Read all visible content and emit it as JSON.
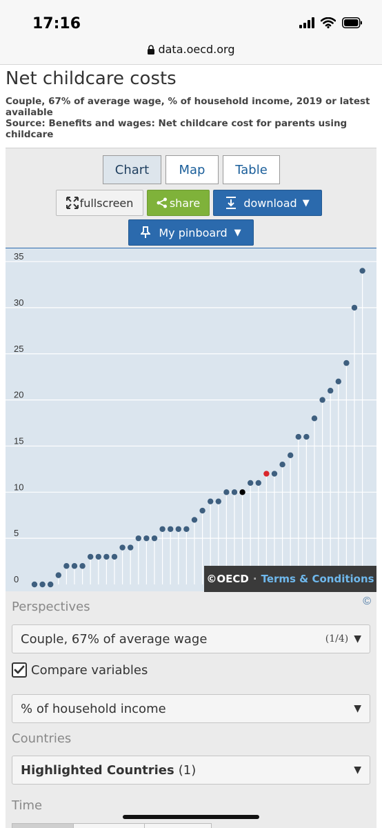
{
  "status": {
    "time": "17:16",
    "url": "data.oecd.org",
    "icons": [
      "signal-icon",
      "wifi-icon",
      "battery-icon"
    ]
  },
  "page": {
    "title": "Net childcare costs",
    "subtitle": "Couple, 67% of average wage, % of household income, 2019 or latest available",
    "source": "Source: Benefits and wages: Net childcare cost for parents using childcare"
  },
  "tabs": [
    {
      "label": "Chart",
      "active": true
    },
    {
      "label": "Map"
    },
    {
      "label": "Table"
    }
  ],
  "buttons": {
    "fullscreen": "fullscreen",
    "share": "share",
    "download": "download",
    "pinboard": "My pinboard"
  },
  "colors": {
    "accent": "#2b6aad",
    "share_green": "#7fb23a",
    "dot": "#3e5f7f",
    "highlight_red": "#d9262c",
    "highlight_black": "#000000",
    "chart_bg": "#dbe5ee"
  },
  "chart_data": {
    "type": "scatter",
    "title": "",
    "xlabel": "",
    "ylabel": "",
    "ylim": [
      0,
      35
    ],
    "yticks": [
      0,
      5,
      10,
      15,
      20,
      25,
      30,
      35
    ],
    "grid": true,
    "values": [
      0,
      0,
      0,
      1,
      2,
      2,
      2,
      3,
      3,
      3,
      3,
      4,
      4,
      5,
      5,
      5,
      6,
      6,
      6,
      6,
      7,
      8,
      9,
      9,
      10,
      10,
      10,
      11,
      11,
      12,
      12,
      13,
      14,
      16,
      16,
      18,
      20,
      21,
      22,
      24,
      30,
      34
    ],
    "highlight_red_index": 29,
    "highlight_black_index": 26
  },
  "badge": {
    "copyright": "©OECD",
    "separator": "·",
    "terms": "Terms & Conditions"
  },
  "copyright_icon": "©",
  "controls": {
    "perspectives_label": "Perspectives",
    "perspective_value": "Couple, 67% of average wage",
    "perspective_count": "(1/4)",
    "compare_label": "Compare variables",
    "compare_checked": true,
    "measure_value": "% of household income",
    "countries_label": "Countries",
    "countries_value": "Highlighted Countries",
    "countries_count": "(1)",
    "time_label": "Time"
  }
}
